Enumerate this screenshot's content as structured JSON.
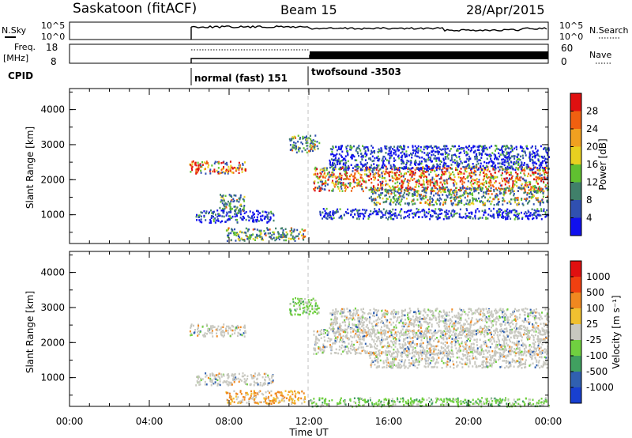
{
  "header": {
    "site": "Saskatoon (fitACF)",
    "beam": "Beam 15",
    "date": "28/Apr/2015"
  },
  "nsky_panel": {
    "left_label": "N.Sky",
    "left_ticks": [
      "10^5",
      "10^0"
    ],
    "right_label": "N.Search",
    "right_ticks": [
      "10^5",
      "10^0"
    ]
  },
  "freq_panel": {
    "left_label_1": "Freq.",
    "left_label_2": "[MHz]",
    "left_ticks": [
      "18",
      "8"
    ],
    "right_label": "Nave",
    "right_ticks": [
      "60",
      "0"
    ]
  },
  "cpid": {
    "label": "CPID",
    "segments": [
      {
        "label": "normal (fast) 151",
        "start_hour": 6.0
      },
      {
        "label": "twofsound -3503",
        "start_hour": 12.0
      }
    ]
  },
  "chart_data": [
    {
      "type": "heatmap",
      "name": "power",
      "ylabel": "Slant Range [km]",
      "ylim": [
        180,
        4600
      ],
      "yticks": [
        "1000",
        "2000",
        "3000",
        "4000"
      ],
      "xlim": [
        0,
        24
      ],
      "colorbar": {
        "label": "Power [dB]",
        "ticks": [
          "4",
          "8",
          "12",
          "16",
          "20",
          "24",
          "28"
        ],
        "colors": [
          "#1010ee",
          "#3050b0",
          "#40806a",
          "#60c030",
          "#e8d020",
          "#f0a020",
          "#f06010",
          "#e01010"
        ]
      },
      "bands": [
        {
          "t0": 6.0,
          "t1": 8.8,
          "r0": 2200,
          "r1": 2550,
          "level": "high"
        },
        {
          "t0": 7.5,
          "t1": 8.8,
          "r0": 1100,
          "r1": 1600,
          "level": "mid"
        },
        {
          "t0": 6.3,
          "t1": 10.2,
          "r0": 800,
          "r1": 1150,
          "level": "low"
        },
        {
          "t0": 7.8,
          "t1": 11.8,
          "r0": 280,
          "r1": 650,
          "level": "mid"
        },
        {
          "t0": 11.0,
          "t1": 12.5,
          "r0": 2800,
          "r1": 3300,
          "level": "mid"
        },
        {
          "t0": 12.2,
          "t1": 24.0,
          "r0": 1700,
          "r1": 2400,
          "level": "high"
        },
        {
          "t0": 13.0,
          "t1": 24.0,
          "r0": 2300,
          "r1": 3000,
          "level": "low"
        },
        {
          "t0": 15.0,
          "t1": 24.0,
          "r0": 1300,
          "r1": 1800,
          "level": "mid"
        },
        {
          "t0": 12.5,
          "t1": 24.0,
          "r0": 900,
          "r1": 1200,
          "level": "low"
        }
      ]
    },
    {
      "type": "heatmap",
      "name": "velocity",
      "ylabel": "Slant Range [km]",
      "ylim": [
        180,
        4600
      ],
      "yticks": [
        "1000",
        "2000",
        "3000",
        "4000"
      ],
      "xlim": [
        0,
        24
      ],
      "xticks": [
        "00:00",
        "04:00",
        "08:00",
        "12:00",
        "16:00",
        "20:00",
        "00:00"
      ],
      "xlabel": "Time UT",
      "colorbar": {
        "label": "Velocity [m s⁻¹]",
        "ticks": [
          "1000",
          "500",
          "100",
          "25",
          "-25",
          "-100",
          "-500",
          "-1000"
        ],
        "colors": [
          "#1840d0",
          "#3060b0",
          "#40a060",
          "#70d040",
          "#c8c8c0",
          "#f0c030",
          "#f08820",
          "#f04010",
          "#e01010"
        ]
      },
      "bands": [
        {
          "t0": 6.0,
          "t1": 8.8,
          "r0": 2200,
          "r1": 2550,
          "level": "gray"
        },
        {
          "t0": 6.3,
          "t1": 10.2,
          "r0": 800,
          "r1": 1150,
          "level": "gray"
        },
        {
          "t0": 7.8,
          "t1": 11.8,
          "r0": 280,
          "r1": 650,
          "level": "orange"
        },
        {
          "t0": 11.0,
          "t1": 12.5,
          "r0": 2800,
          "r1": 3300,
          "level": "green"
        },
        {
          "t0": 12.2,
          "t1": 24.0,
          "r0": 1700,
          "r1": 2400,
          "level": "gray"
        },
        {
          "t0": 13.0,
          "t1": 24.0,
          "r0": 2300,
          "r1": 3000,
          "level": "gray"
        },
        {
          "t0": 15.0,
          "t1": 24.0,
          "r0": 1300,
          "r1": 1800,
          "level": "gray"
        },
        {
          "t0": 12.0,
          "t1": 24.0,
          "r0": 200,
          "r1": 450,
          "level": "green"
        }
      ]
    }
  ]
}
